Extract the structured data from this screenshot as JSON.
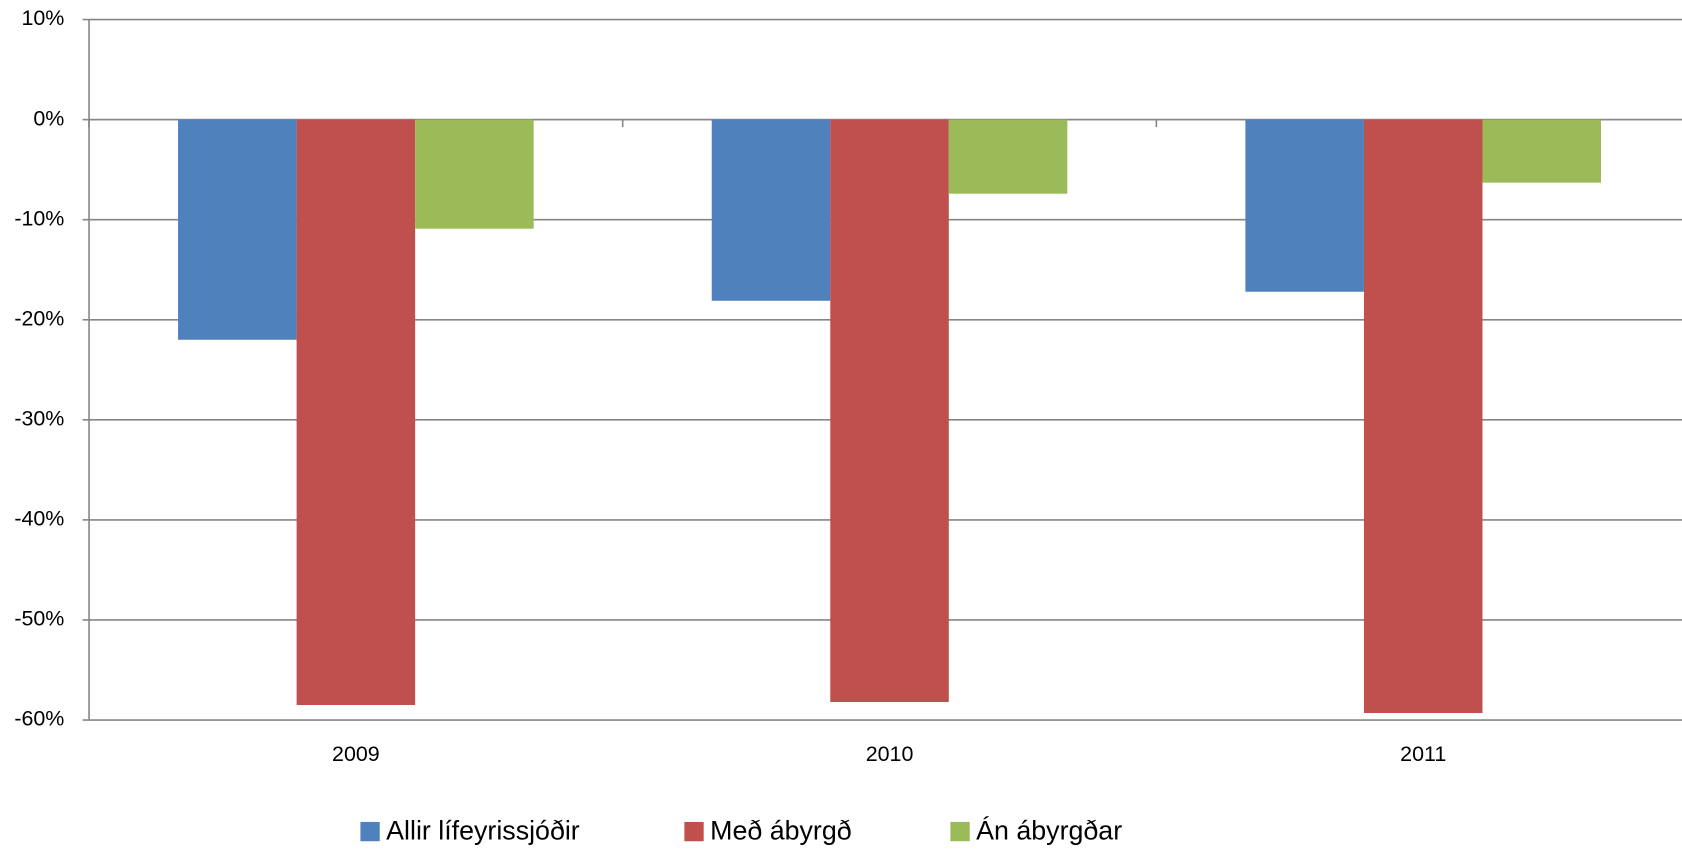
{
  "chart_data": {
    "type": "bar",
    "categories": [
      "2009",
      "2010",
      "2011"
    ],
    "series": [
      {
        "name": "Allir lífeyrissjóðir",
        "color": "#4f81bd",
        "values": [
          -22.0,
          -18.1,
          -17.2
        ]
      },
      {
        "name": "Með ábyrgð",
        "color": "#c0504d",
        "values": [
          -58.5,
          -58.2,
          -59.3
        ]
      },
      {
        "name": "Án ábyrgðar",
        "color": "#9bbb59",
        "values": [
          -10.9,
          -7.4,
          -6.3
        ]
      }
    ],
    "ylim": [
      -60,
      10
    ],
    "yticks": [
      {
        "value": 10,
        "label": "10%"
      },
      {
        "value": 0,
        "label": "0%"
      },
      {
        "value": -10,
        "label": "-10%"
      },
      {
        "value": -20,
        "label": "-20%"
      },
      {
        "value": -30,
        "label": "-30%"
      },
      {
        "value": -40,
        "label": "-40%"
      },
      {
        "value": -50,
        "label": "-50%"
      },
      {
        "value": -60,
        "label": "-60%"
      }
    ],
    "grid": true,
    "legend": "bottom"
  }
}
